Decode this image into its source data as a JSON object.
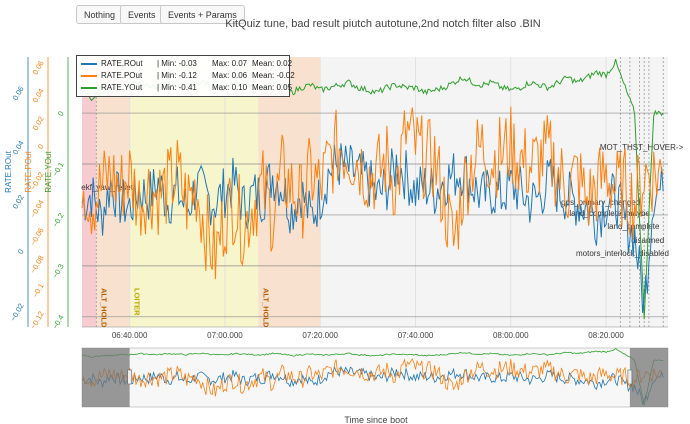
{
  "toolbar": {
    "buttons": [
      {
        "label": "Nothing"
      },
      {
        "label": "Events"
      },
      {
        "label": "Events + Params"
      }
    ]
  },
  "chart_data": {
    "type": "line",
    "title": "KitQuiz tune, bad result piutch autotune,2nd notch filter also .BIN",
    "xlabel": "Time since boot",
    "x_ticks": [
      "06:40.000",
      "07:00.000",
      "07:20.000",
      "07:40.000",
      "08:00.000",
      "08:20.000"
    ],
    "x_tick_seconds": [
      400,
      420,
      440,
      460,
      480,
      500
    ],
    "x_range_seconds": [
      390,
      513
    ],
    "axes": [
      {
        "id": "rout",
        "label": "RATE.ROut",
        "color": "#1f77b4",
        "range": [
          -0.028,
          0.0715
        ],
        "ticks": [
          "0.06",
          "0.04",
          "0.02",
          "0",
          "−0.02"
        ],
        "tick_values": [
          0.06,
          0.04,
          0.02,
          0,
          -0.02
        ]
      },
      {
        "id": "pout",
        "label": "RATE.POut",
        "color": "#ff7f0e",
        "range": [
          -0.13,
          0.064
        ],
        "ticks": [
          "0.06",
          "0.04",
          "0.02",
          "0",
          "−0.02",
          "−0.04",
          "−0.06",
          "−0.08",
          "−0.1",
          "−0.12"
        ],
        "tick_values": [
          0.06,
          0.04,
          0.02,
          0,
          -0.02,
          -0.04,
          -0.06,
          -0.08,
          -0.1,
          -0.12
        ]
      },
      {
        "id": "yout",
        "label": "RATE.YOut",
        "color": "#2ca02c",
        "range": [
          -0.42,
          0.11
        ],
        "ticks": [
          "0",
          "−0.1",
          "−0.2",
          "−0.3",
          "−0.4"
        ],
        "tick_values": [
          0,
          -0.1,
          -0.2,
          -0.3,
          -0.4
        ]
      }
    ],
    "legend_position": "top-left",
    "series": [
      {
        "name": "RATE.ROut",
        "color": "#1f77b4",
        "axis": "rout",
        "min": "-0.03",
        "max": "0.07",
        "mean": "0.02",
        "x": [
          390,
          392,
          394,
          396,
          398,
          400,
          402,
          404,
          406,
          408,
          410,
          412,
          414,
          416,
          418,
          420,
          422,
          424,
          426,
          428,
          430,
          432,
          434,
          436,
          438,
          440,
          442,
          444,
          446,
          448,
          450,
          452,
          454,
          456,
          458,
          460,
          462,
          464,
          466,
          468,
          470,
          472,
          474,
          476,
          478,
          480,
          482,
          484,
          486,
          488,
          490,
          492,
          494,
          496,
          498,
          500,
          502,
          504,
          506,
          508,
          510,
          512
        ],
        "y": [
          0.018,
          0.021,
          0.012,
          0.025,
          0.018,
          0.016,
          0.022,
          0.02,
          0.025,
          0.018,
          0.022,
          0.015,
          0.024,
          0.02,
          0.018,
          0.022,
          0.025,
          0.016,
          0.021,
          0.02,
          0.028,
          0.024,
          0.015,
          0.022,
          0.012,
          0.02,
          0.03,
          0.032,
          0.03,
          0.028,
          0.026,
          0.02,
          0.024,
          0.032,
          0.028,
          0.022,
          0.024,
          0.022,
          0.026,
          0.028,
          0.03,
          0.024,
          0.02,
          0.022,
          0.02,
          0.024,
          0.022,
          0.018,
          0.02,
          0.026,
          0.022,
          0.02,
          0.018,
          0.016,
          0.012,
          0.018,
          0.02,
          0.01,
          0.006,
          -0.02,
          0.022,
          0.022
        ]
      },
      {
        "name": "RATE.POut",
        "color": "#ff7f0e",
        "axis": "pout",
        "min": "-0.12",
        "max": "0.06",
        "mean": "-0.02",
        "x": [
          390,
          392,
          394,
          396,
          398,
          400,
          402,
          404,
          406,
          408,
          410,
          412,
          414,
          416,
          418,
          420,
          422,
          424,
          426,
          428,
          430,
          432,
          434,
          436,
          438,
          440,
          442,
          444,
          446,
          448,
          450,
          452,
          454,
          456,
          458,
          460,
          462,
          464,
          466,
          468,
          470,
          472,
          474,
          476,
          478,
          480,
          482,
          484,
          486,
          488,
          490,
          492,
          494,
          496,
          498,
          500,
          502,
          504,
          506,
          508,
          510,
          512
        ],
        "y": [
          -0.02,
          -0.04,
          -0.03,
          -0.02,
          -0.03,
          -0.02,
          -0.04,
          -0.03,
          -0.035,
          -0.03,
          -0.02,
          -0.04,
          -0.03,
          -0.06,
          -0.08,
          -0.05,
          -0.04,
          -0.06,
          -0.04,
          -0.03,
          -0.05,
          -0.02,
          -0.03,
          -0.04,
          -0.02,
          -0.03,
          -0.01,
          0,
          -0.005,
          -0.01,
          -0.02,
          -0.02,
          -0.01,
          -0.03,
          0.01,
          0,
          -0.01,
          -0.01,
          -0.04,
          -0.07,
          -0.03,
          -0.01,
          0,
          -0.01,
          -0.005,
          0,
          -0.01,
          -0.015,
          -0.01,
          -0.005,
          -0.02,
          -0.03,
          -0.02,
          -0.04,
          -0.03,
          -0.02,
          -0.03,
          -0.03,
          -0.04,
          -0.02,
          -0.02,
          -0.02
        ]
      },
      {
        "name": "RATE.YOut",
        "color": "#2ca02c",
        "axis": "yout",
        "min": "-0.41",
        "max": "0.10",
        "mean": "0.05",
        "x": [
          390,
          392,
          394,
          396,
          398,
          400,
          402,
          404,
          406,
          408,
          410,
          412,
          414,
          416,
          418,
          420,
          422,
          424,
          426,
          428,
          430,
          432,
          434,
          436,
          438,
          440,
          442,
          444,
          446,
          448,
          450,
          452,
          454,
          456,
          458,
          460,
          462,
          464,
          466,
          468,
          470,
          472,
          474,
          476,
          478,
          480,
          482,
          484,
          486,
          488,
          490,
          492,
          494,
          496,
          498,
          500,
          502,
          504,
          506,
          508,
          510,
          512
        ],
        "y": [
          0.05,
          0.03,
          0.04,
          0.04,
          0.05,
          0.05,
          0.06,
          0.055,
          0.05,
          0.06,
          0.055,
          0.05,
          0.06,
          0.06,
          0.05,
          0.045,
          0.06,
          0.055,
          0.05,
          0.05,
          0.06,
          0.055,
          0.04,
          0.05,
          0.055,
          0.045,
          0.05,
          0.055,
          0.06,
          0.05,
          0.045,
          0.04,
          0.05,
          0.055,
          0.05,
          0.05,
          0.04,
          0.045,
          0.05,
          0.06,
          0.07,
          0.06,
          0.055,
          0.06,
          0.05,
          0.045,
          0.05,
          0.06,
          0.055,
          0.05,
          0.06,
          0.07,
          0.06,
          0.07,
          0.08,
          0.075,
          0.1,
          0.05,
          0,
          -0.4,
          0,
          0
        ]
      }
    ],
    "modes": [
      {
        "label": "ALT_HOLD",
        "start": 390,
        "end": 393,
        "color": "#f6c8cc"
      },
      {
        "label": "ALT_HOLD",
        "start": 393,
        "end": 400,
        "color": "#f8e0cb"
      },
      {
        "label": "LOITER",
        "start": 400,
        "end": 427,
        "color": "#f7f5c6"
      },
      {
        "label": "ALT_HOLD",
        "start": 427,
        "end": 440,
        "color": "#f8e0cb"
      }
    ],
    "events": [
      {
        "label": "ekf_yaw_reset",
        "x": 393
      },
      {
        "label": "MOT_THST_HOVER->",
        "x": 512
      },
      {
        "label": "gps_primary_changed",
        "x": 503
      },
      {
        "label": "land_complete_maybe",
        "x": 505
      },
      {
        "label": "land_complete",
        "x": 507
      },
      {
        "label": "disarmed",
        "x": 508
      },
      {
        "label": "motors_interlock_disabled",
        "x": 509
      }
    ],
    "range_selector": {
      "start": 400,
      "end": 505
    },
    "grid": true
  }
}
